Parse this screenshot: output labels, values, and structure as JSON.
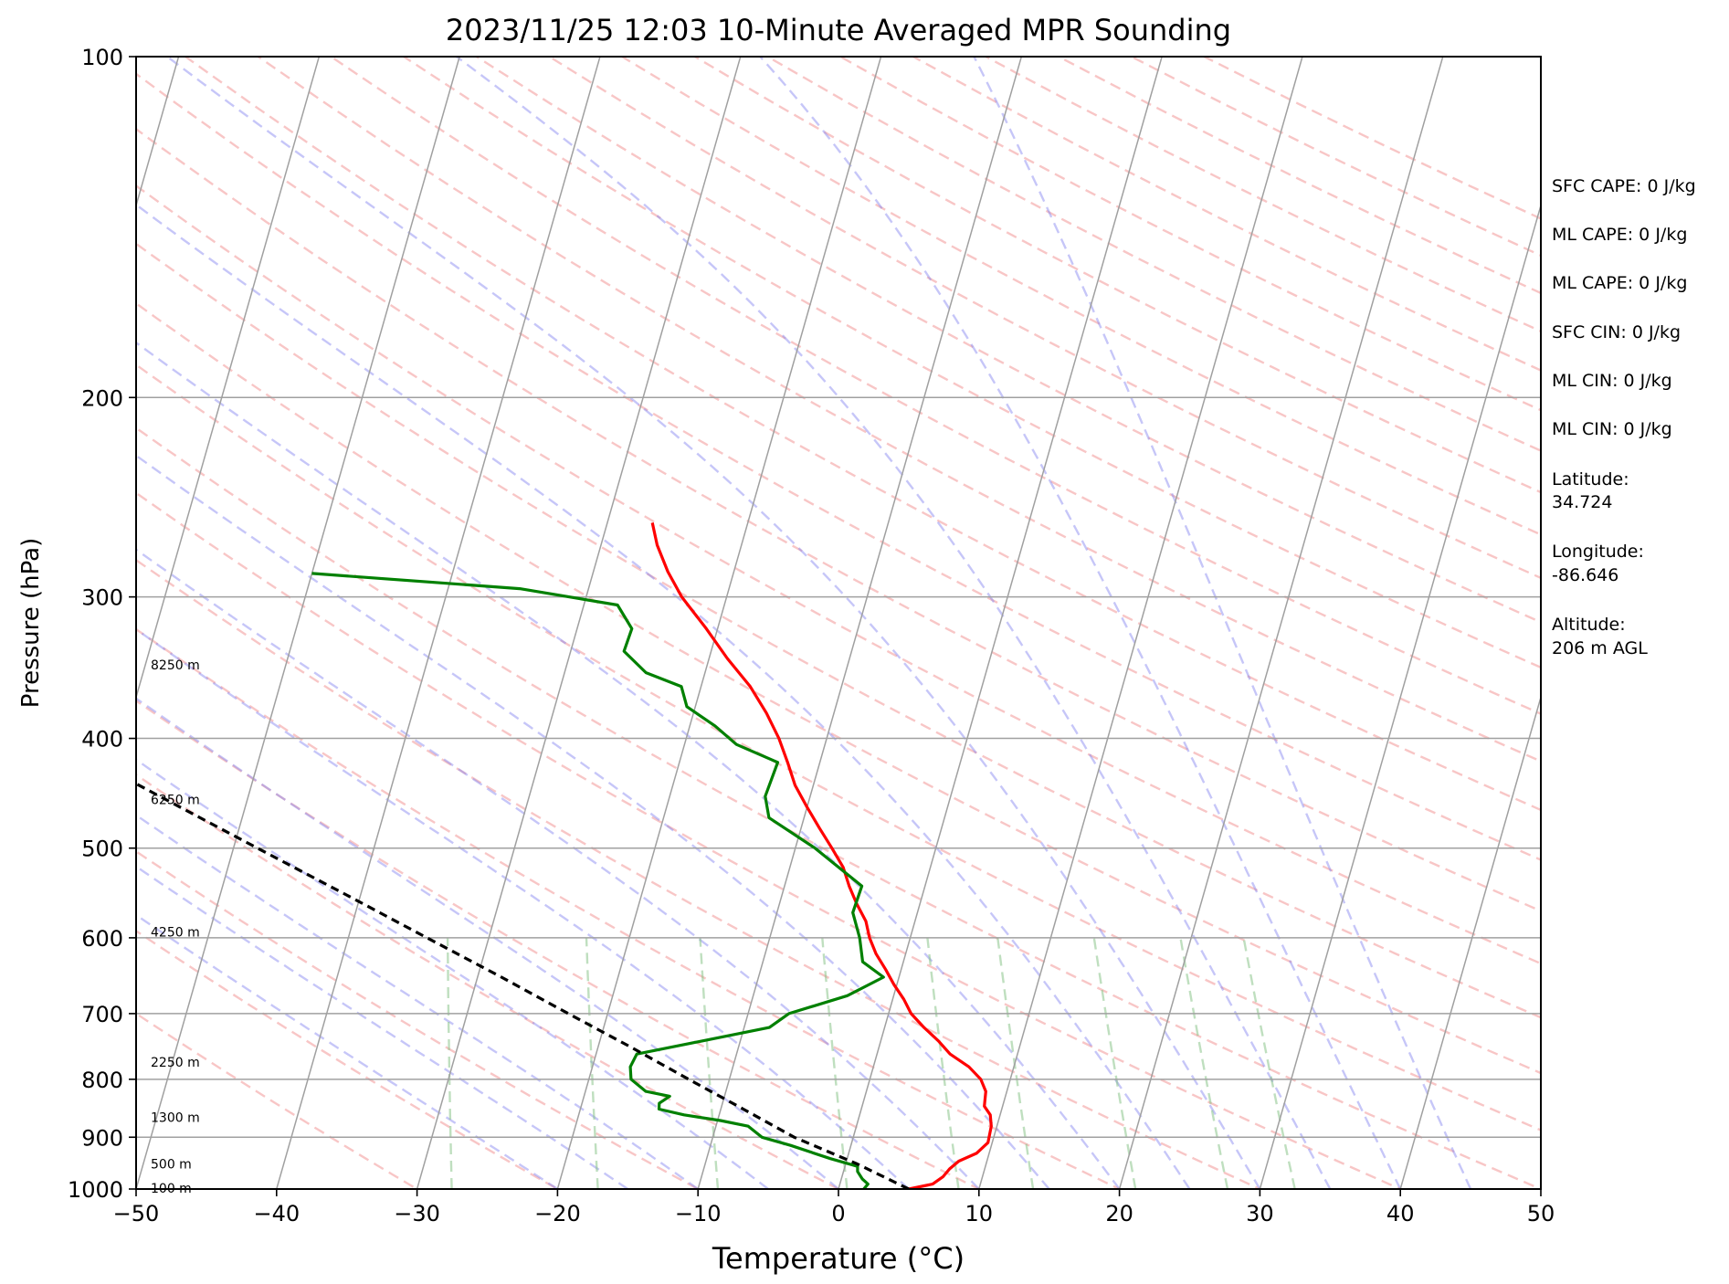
{
  "chart_data": {
    "type": "skew-t",
    "title": "2023/11/25 12:03 10-Minute Averaged MPR Sounding",
    "xlabel": "Temperature (°C)",
    "ylabel": "Pressure (hPa)",
    "xlim": [
      -50,
      50
    ],
    "ylim": [
      1000,
      100
    ],
    "y_scale": "log",
    "x_ticks": [
      -50,
      -40,
      -30,
      -20,
      -10,
      0,
      10,
      20,
      30,
      40,
      50
    ],
    "x_tick_labels": [
      "−50",
      "−40",
      "−30",
      "−20",
      "−10",
      "0",
      "10",
      "20",
      "30",
      "40",
      "50"
    ],
    "y_ticks": [
      1000,
      900,
      800,
      700,
      600,
      500,
      400,
      300,
      200,
      100
    ],
    "y_tick_labels": [
      "1000",
      "900",
      "800",
      "700",
      "600",
      "500",
      "400",
      "300",
      "200",
      "100"
    ],
    "grid": true,
    "colors": {
      "temperature": "#ff0000",
      "dewpoint": "#008000",
      "parcel": "#000000",
      "dry_adiabats": "#f08080",
      "moist_adiabats": "#8080f0",
      "mixing_ratio": "#80c080",
      "isotherms": "#a0a0a0",
      "isobars": "#a0a0a0"
    },
    "series": [
      {
        "key": "temperature",
        "points": [
          [
            1000,
            5.0
          ],
          [
            990,
            6.6
          ],
          [
            975,
            7.2
          ],
          [
            960,
            7.5
          ],
          [
            945,
            8.0
          ],
          [
            930,
            9.1
          ],
          [
            910,
            9.7
          ],
          [
            880,
            9.6
          ],
          [
            860,
            9.3
          ],
          [
            845,
            8.7
          ],
          [
            820,
            8.5
          ],
          [
            800,
            7.9
          ],
          [
            780,
            6.8
          ],
          [
            760,
            5.2
          ],
          [
            740,
            4.1
          ],
          [
            720,
            2.8
          ],
          [
            700,
            1.6
          ],
          [
            680,
            0.8
          ],
          [
            660,
            -0.2
          ],
          [
            640,
            -1.1
          ],
          [
            620,
            -2.1
          ],
          [
            600,
            -2.9
          ],
          [
            580,
            -3.5
          ],
          [
            560,
            -4.5
          ],
          [
            540,
            -5.4
          ],
          [
            520,
            -6.2
          ],
          [
            500,
            -7.4
          ],
          [
            480,
            -8.7
          ],
          [
            460,
            -10.0
          ],
          [
            440,
            -11.3
          ],
          [
            420,
            -12.3
          ],
          [
            400,
            -13.4
          ],
          [
            380,
            -14.8
          ],
          [
            360,
            -16.5
          ],
          [
            340,
            -18.7
          ],
          [
            320,
            -20.8
          ],
          [
            300,
            -23.2
          ],
          [
            285,
            -24.7
          ],
          [
            270,
            -26.0
          ],
          [
            258,
            -26.8
          ]
        ]
      },
      {
        "key": "dewpoint",
        "points": [
          [
            1000,
            1.8
          ],
          [
            990,
            2.0
          ],
          [
            980,
            1.5
          ],
          [
            965,
            1.0
          ],
          [
            955,
            0.9
          ],
          [
            940,
            -1.2
          ],
          [
            915,
            -4.3
          ],
          [
            900,
            -6.5
          ],
          [
            880,
            -7.7
          ],
          [
            870,
            -9.8
          ],
          [
            860,
            -12.5
          ],
          [
            850,
            -14.4
          ],
          [
            840,
            -14.5
          ],
          [
            828,
            -13.9
          ],
          [
            820,
            -15.7
          ],
          [
            800,
            -17.0
          ],
          [
            780,
            -17.3
          ],
          [
            760,
            -17.1
          ],
          [
            720,
            -8.2
          ],
          [
            700,
            -7.1
          ],
          [
            675,
            -3.3
          ],
          [
            650,
            -1.1
          ],
          [
            630,
            -2.9
          ],
          [
            600,
            -3.6
          ],
          [
            570,
            -4.6
          ],
          [
            540,
            -4.5
          ],
          [
            500,
            -8.6
          ],
          [
            470,
            -12.5
          ],
          [
            450,
            -13.2
          ],
          [
            420,
            -13.0
          ],
          [
            405,
            -16.3
          ],
          [
            390,
            -18.2
          ],
          [
            375,
            -20.6
          ],
          [
            360,
            -21.4
          ],
          [
            350,
            -24.2
          ],
          [
            335,
            -26.2
          ],
          [
            320,
            -26.1
          ],
          [
            305,
            -27.6
          ],
          [
            295,
            -34.9
          ],
          [
            286,
            -50.0
          ]
        ]
      },
      {
        "key": "parcel",
        "points": [
          [
            1000,
            5.0
          ],
          [
            950,
            0.8
          ],
          [
            900,
            -4.2
          ],
          [
            850,
            -8.4
          ],
          [
            800,
            -12.9
          ],
          [
            750,
            -17.6
          ],
          [
            700,
            -22.8
          ],
          [
            650,
            -28.3
          ],
          [
            600,
            -34.4
          ],
          [
            550,
            -41.0
          ],
          [
            500,
            -48.3
          ],
          [
            450,
            -56.3
          ],
          [
            400,
            -65.2
          ],
          [
            350,
            -75.2
          ],
          [
            300,
            -86.7
          ],
          [
            265,
            -95.8
          ]
        ]
      }
    ],
    "height_labels": [
      {
        "text": "100 m",
        "pressure": 1000
      },
      {
        "text": "500 m",
        "pressure": 952
      },
      {
        "text": "1300 m",
        "pressure": 866
      },
      {
        "text": "2250 m",
        "pressure": 774
      },
      {
        "text": "4250 m",
        "pressure": 594
      },
      {
        "text": "6250 m",
        "pressure": 454
      },
      {
        "text": "8250 m",
        "pressure": 345
      }
    ]
  },
  "side_panel": {
    "sfc_cape": "SFC CAPE: 0 J/kg",
    "ml_cape_1": "ML CAPE: 0 J/kg",
    "ml_cape_2": "ML CAPE: 0 J/kg",
    "sfc_cin": "SFC CIN: 0 J/kg",
    "ml_cin_1": "ML CIN: 0 J/kg",
    "ml_cin_2": "ML CIN: 0 J/kg",
    "latitude_label": "Latitude:",
    "latitude_value": "34.724",
    "longitude_label": "Longitude:",
    "longitude_value": "-86.646",
    "altitude_label": "Altitude:",
    "altitude_value": "206 m AGL"
  }
}
